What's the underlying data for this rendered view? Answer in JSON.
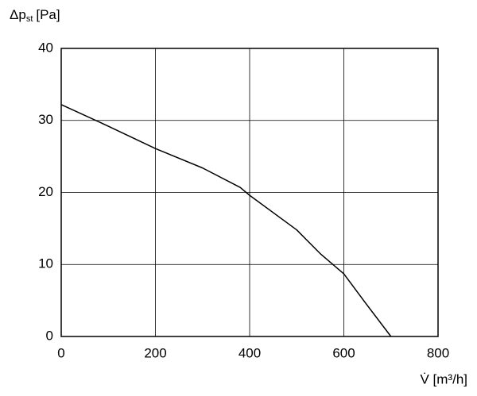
{
  "chart_data": {
    "type": "line",
    "ylabel": {
      "symbol": "Δp",
      "subscript": "st",
      "unit": "[Pa]"
    },
    "xlabel": "V̇ [m³/h]",
    "x": [
      0,
      100,
      200,
      300,
      380,
      400,
      500,
      550,
      600,
      650,
      700
    ],
    "series": [
      {
        "color": "#000000",
        "values": [
          32.2,
          29.2,
          26.1,
          23.4,
          20.7,
          19.6,
          14.8,
          11.5,
          8.7,
          4.3,
          0
        ]
      }
    ],
    "xlim": [
      0,
      800
    ],
    "xticks": [
      0,
      200,
      400,
      600,
      800
    ],
    "ylim": [
      0,
      40
    ],
    "yticks": [
      0,
      10,
      20,
      30,
      40
    ],
    "grid": true
  }
}
